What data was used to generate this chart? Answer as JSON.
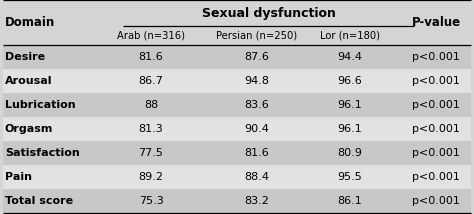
{
  "title": "Sexual dysfunction",
  "col_domain": "Domain",
  "col_pvalue": "P-value",
  "subheaders": [
    "Arab (n=316)",
    "Persian (n=250)",
    "Lor (n=180)"
  ],
  "rows": [
    {
      "domain": "Desire",
      "arab": "81.6",
      "persian": "87.6",
      "lor": "94.4",
      "pvalue": "p<0.001",
      "shaded": true
    },
    {
      "domain": "Arousal",
      "arab": "86.7",
      "persian": "94.8",
      "lor": "96.6",
      "pvalue": "p<0.001",
      "shaded": false
    },
    {
      "domain": "Lubrication",
      "arab": "88",
      "persian": "83.6",
      "lor": "96.1",
      "pvalue": "p<0.001",
      "shaded": true
    },
    {
      "domain": "Orgasm",
      "arab": "81.3",
      "persian": "90.4",
      "lor": "96.1",
      "pvalue": "p<0.001",
      "shaded": false
    },
    {
      "domain": "Satisfaction",
      "arab": "77.5",
      "persian": "81.6",
      "lor": "80.9",
      "pvalue": "p<0.001",
      "shaded": true
    },
    {
      "domain": "Pain",
      "arab": "89.2",
      "persian": "88.4",
      "lor": "95.5",
      "pvalue": "p<0.001",
      "shaded": false
    },
    {
      "domain": "Total score",
      "arab": "75.3",
      "persian": "83.2",
      "lor": "86.1",
      "pvalue": "p<0.001",
      "shaded": true
    }
  ],
  "bg_color": "#d4d4d4",
  "shaded_color": "#c8c8c8",
  "white_color": "#e2e2e2",
  "line_color": "#000000",
  "text_color": "#000000",
  "figw": 4.74,
  "figh": 2.14,
  "dpi": 100
}
